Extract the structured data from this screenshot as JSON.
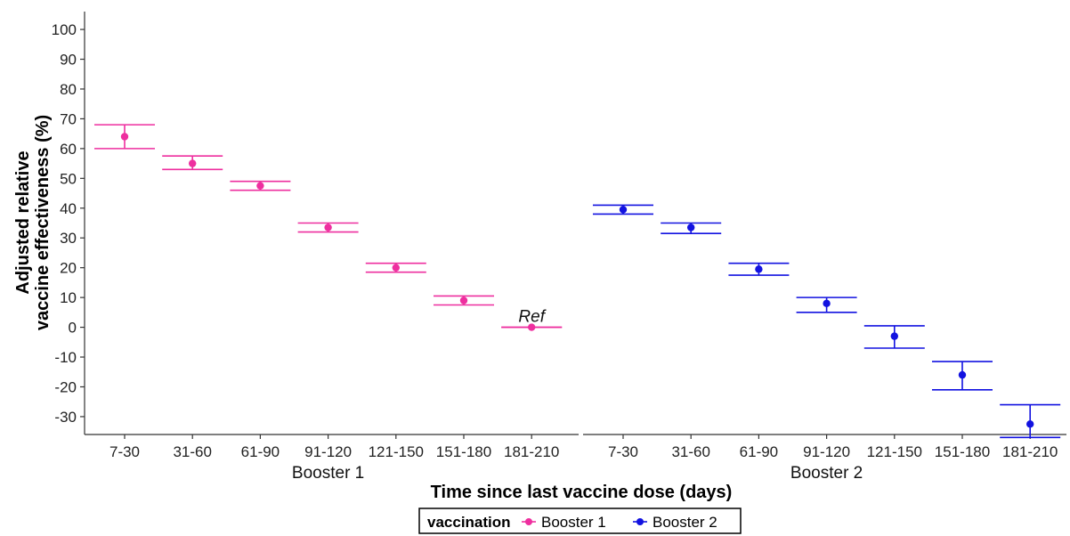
{
  "chart_data": {
    "type": "errorbar",
    "ylabel_line1": "Adjusted relative",
    "ylabel_line2": "vaccine effectiveness (%)",
    "xlabel": "Time since last vaccine dose (days)",
    "ylim": [
      -36,
      106
    ],
    "yticks": [
      -30,
      -20,
      -10,
      0,
      10,
      20,
      30,
      40,
      50,
      60,
      70,
      80,
      90,
      100
    ],
    "grid": false,
    "legend": {
      "position": "bottom",
      "title": "vaccination",
      "entries": [
        "Booster 1",
        "Booster 2"
      ]
    },
    "colors": {
      "Booster 1": "#ee2f9f",
      "Booster 2": "#1212e0"
    },
    "facets": [
      {
        "label": "Booster 1",
        "series": "Booster 1",
        "categories": [
          "7-30",
          "31-60",
          "61-90",
          "91-120",
          "121-150",
          "151-180",
          "181-210"
        ],
        "estimate": [
          64,
          55,
          47.5,
          33.5,
          20,
          9,
          0
        ],
        "lower": [
          60,
          53,
          46,
          32,
          18.5,
          7.5,
          0
        ],
        "upper": [
          68,
          57.5,
          49,
          35,
          21.5,
          10.5,
          0
        ],
        "annotations": [
          {
            "category": "181-210",
            "text": "Ref"
          }
        ]
      },
      {
        "label": "Booster 2",
        "series": "Booster 2",
        "categories": [
          "7-30",
          "31-60",
          "61-90",
          "91-120",
          "121-150",
          "151-180",
          "181-210"
        ],
        "estimate": [
          39.5,
          33.5,
          19.5,
          8,
          -3,
          -16,
          -32.5
        ],
        "lower": [
          38,
          31.5,
          17.5,
          5,
          -7,
          -21,
          -37
        ],
        "upper": [
          41,
          35,
          21.5,
          10,
          0.5,
          -11.5,
          -26
        ]
      }
    ]
  }
}
